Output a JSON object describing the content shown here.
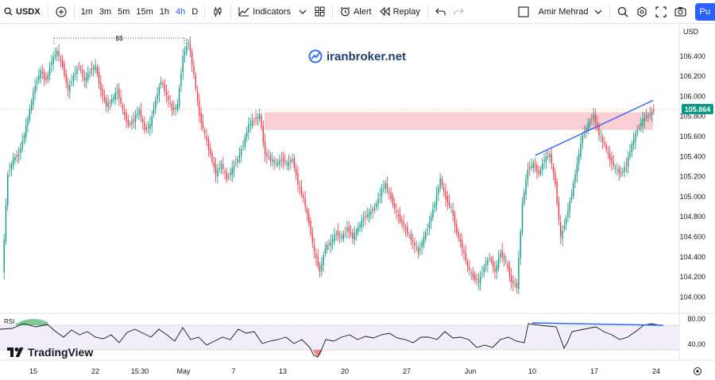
{
  "toolbar": {
    "symbol": "USDX",
    "timeframes": [
      "1m",
      "3m",
      "5m",
      "15m",
      "1h",
      "4h",
      "D"
    ],
    "active_timeframe": "4h",
    "indicators_label": "Indicators",
    "alert_label": "Alert",
    "replay_label": "Replay",
    "user_name": "Amir Mehrad",
    "publish_label": "Pu"
  },
  "chart": {
    "watermark": "iranbroker.net",
    "currency": "USD",
    "current_price": "105.864",
    "price_ticks": [
      "106.400",
      "106.200",
      "106.000",
      "105.800",
      "105.600",
      "105.400",
      "105.200",
      "105.000",
      "104.800",
      "104.600",
      "104.400",
      "104.200",
      "104.000"
    ],
    "time_ticks": [
      "15",
      "22",
      "15:30",
      "May",
      "7",
      "13",
      "20",
      "27",
      "Jun",
      "10",
      "17",
      "24"
    ],
    "annotation": "$$",
    "rsi_label": "RSI",
    "rsi_ticks": [
      "80.00",
      "40.00"
    ],
    "logo": "TradingView"
  },
  "colors": {
    "up": "#089981",
    "down": "#f23645",
    "accent": "#2962ff",
    "zone": "#f8c5cd",
    "trendline": "#2962ff"
  },
  "chart_data": {
    "type": "candlestick",
    "symbol": "USDX",
    "timeframe": "4h",
    "ylim": [
      103.9,
      106.65
    ],
    "series": [
      {
        "values": [
          104.2,
          105.2,
          105.35,
          105.4,
          105.6,
          105.85,
          106.1,
          106.25,
          106.15,
          106.35,
          106.45,
          106.3,
          106.05,
          106.2,
          106.3,
          106.15,
          106.25,
          106.3,
          106.05,
          105.9,
          105.95,
          106.05,
          105.85,
          105.7,
          105.75,
          105.85,
          105.65,
          105.7,
          105.95,
          106.15,
          106.0,
          105.85,
          105.9,
          106.4,
          106.55,
          106.2,
          105.8,
          105.6,
          105.4,
          105.2,
          105.3,
          105.15,
          105.25,
          105.35,
          105.5,
          105.7,
          105.75,
          105.8,
          105.4,
          105.35,
          105.3,
          105.35,
          105.3,
          105.35,
          105.1,
          104.95,
          104.7,
          104.4,
          104.2,
          104.45,
          104.5,
          104.6,
          104.55,
          104.65,
          104.55,
          104.65,
          104.75,
          104.8,
          104.85,
          105.0,
          105.1,
          104.95,
          104.8,
          104.7,
          104.6,
          104.5,
          104.4,
          104.55,
          104.7,
          104.9,
          105.15,
          104.95,
          104.85,
          104.6,
          104.45,
          104.25,
          104.15,
          104.1,
          104.25,
          104.35,
          104.2,
          104.4,
          104.3,
          104.1,
          104.05,
          104.9,
          105.25,
          105.3,
          105.2,
          105.35,
          105.4,
          105.1,
          104.55,
          104.75,
          105.0,
          105.3,
          105.6,
          105.7,
          105.8,
          105.6,
          105.5,
          105.35,
          105.25,
          105.2,
          105.3,
          105.5,
          105.65,
          105.75,
          105.8,
          105.85
        ]
      }
    ],
    "resistance_zone": [
      105.65,
      105.83
    ],
    "trendline": [
      105.39,
      105.95
    ]
  }
}
